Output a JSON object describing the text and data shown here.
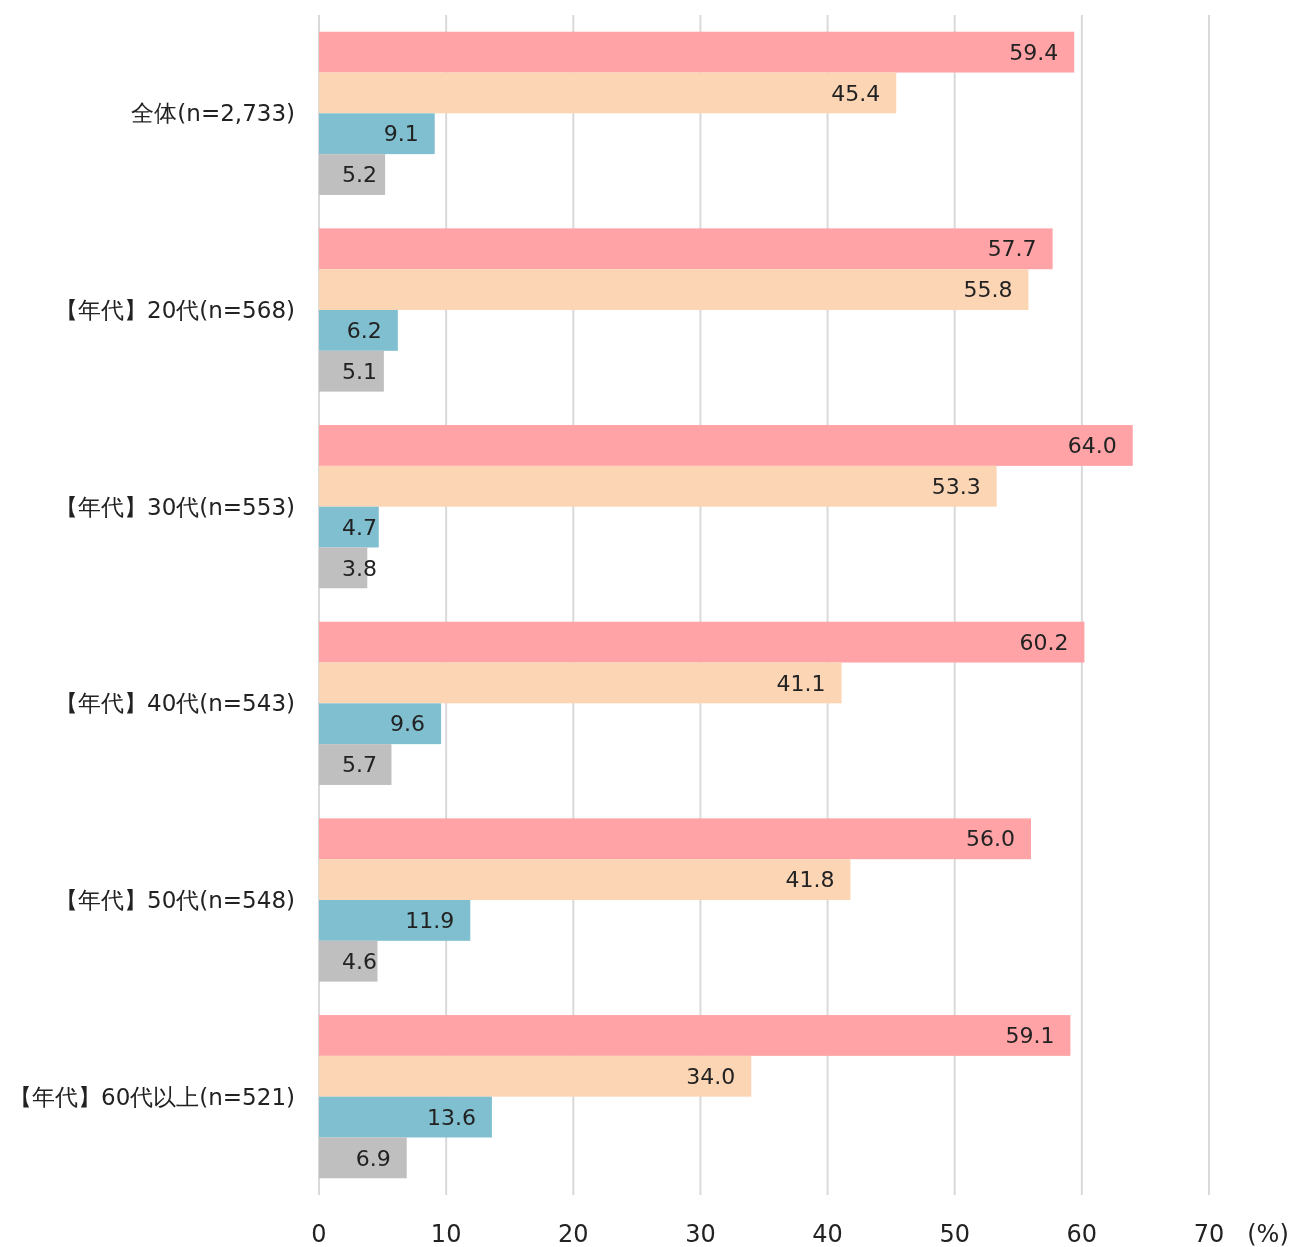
{
  "chart_data": {
    "type": "bar",
    "orientation": "horizontal",
    "xlabel": "(%)",
    "categories": [
      "全体(n=2,733)",
      "【年代】20代(n=568)",
      "【年代】30代(n=553)",
      "【年代】40代(n=543)",
      "【年代】50代(n=548)",
      "【年代】60代以上(n=521)"
    ],
    "series": [
      {
        "color": "#ffa3a6",
        "values": [
          59.4,
          57.7,
          64.0,
          60.2,
          56.0,
          59.1
        ]
      },
      {
        "color": "#fcd5b5",
        "values": [
          45.4,
          55.8,
          53.3,
          41.1,
          41.8,
          34.0
        ]
      },
      {
        "color": "#7fbfcf",
        "values": [
          9.1,
          6.2,
          4.7,
          9.6,
          11.9,
          13.6
        ]
      },
      {
        "color": "#bfbfbf",
        "values": [
          5.2,
          5.1,
          3.8,
          5.7,
          4.6,
          6.9
        ]
      }
    ],
    "value_labels": [
      [
        "59.4",
        "57.7",
        "64.0",
        "60.2",
        "56.0",
        "59.1"
      ],
      [
        "45.4",
        "55.8",
        "53.3",
        "41.1",
        "41.8",
        "34.0"
      ],
      [
        "9.1",
        "6.2",
        "4.7",
        "9.6",
        "11.9",
        "13.6"
      ],
      [
        "5.2",
        "5.1",
        "3.8",
        "5.7",
        "4.6",
        "6.9"
      ]
    ],
    "xlim": [
      0,
      70
    ],
    "xticks": [
      0,
      10,
      20,
      30,
      40,
      50,
      60,
      70
    ],
    "grid": "x"
  }
}
